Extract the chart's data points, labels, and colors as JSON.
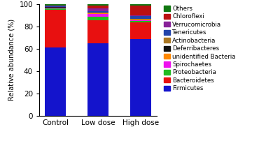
{
  "categories": [
    "Control",
    "Low dose",
    "High dose"
  ],
  "series": [
    {
      "name": "Firmicutes",
      "color": "#1414CC",
      "values": [
        61.0,
        65.0,
        69.0
      ]
    },
    {
      "name": "Bacteroidetes",
      "color": "#E81010",
      "values": [
        34.0,
        20.5,
        15.0
      ]
    },
    {
      "name": "Proteobacteria",
      "color": "#22BB22",
      "values": [
        1.5,
        3.0,
        1.0
      ]
    },
    {
      "name": "Spirochaetes",
      "color": "#EE11EE",
      "values": [
        0.3,
        3.0,
        0.5
      ]
    },
    {
      "name": "unidentified Bacteria",
      "color": "#FF8800",
      "values": [
        0.2,
        0.3,
        0.5
      ]
    },
    {
      "name": "Deferribacteres",
      "color": "#111111",
      "values": [
        0.3,
        0.3,
        0.3
      ]
    },
    {
      "name": "Actinobacteria",
      "color": "#AA7722",
      "values": [
        0.3,
        0.4,
        0.3
      ]
    },
    {
      "name": "Tenericutes",
      "color": "#2244AA",
      "values": [
        0.4,
        1.0,
        3.0
      ]
    },
    {
      "name": "Verrucomicrobia",
      "color": "#882299",
      "values": [
        0.5,
        2.5,
        0.5
      ]
    },
    {
      "name": "Chloroflexi",
      "color": "#BB1111",
      "values": [
        0.5,
        2.5,
        8.9
      ]
    },
    {
      "name": "Others",
      "color": "#117711",
      "values": [
        1.0,
        1.5,
        1.0
      ]
    }
  ],
  "ylabel": "Relative abundance (%)",
  "ylim": [
    0,
    100
  ],
  "yticks": [
    0,
    20,
    40,
    60,
    80,
    100
  ],
  "bar_width": 0.5,
  "fig_width": 4.0,
  "fig_height": 2.02,
  "dpi": 100,
  "legend_order": [
    "Others",
    "Chloroflexi",
    "Verrucomicrobia",
    "Tenericutes",
    "Actinobacteria",
    "Deferribacteres",
    "unidentified Bacteria",
    "Spirochaetes",
    "Proteobacteria",
    "Bacteroidetes",
    "Firmicutes"
  ]
}
